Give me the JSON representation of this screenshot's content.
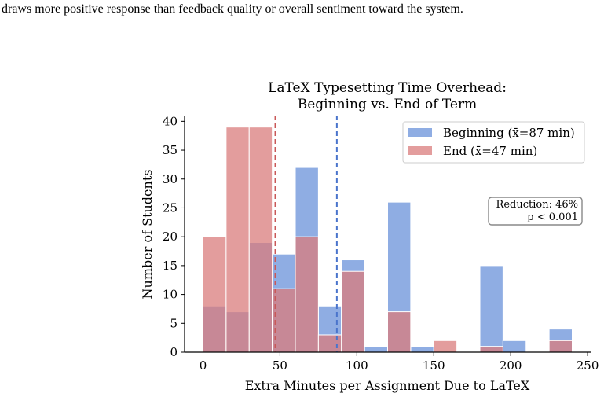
{
  "caption_fragment": "draws more positive response than feedback quality or overall sentiment toward the system.",
  "chart_data": {
    "type": "bar",
    "title_lines": [
      "LaTeX Typesetting Time Overhead:",
      "Beginning vs. End of Term"
    ],
    "xlabel": "Extra Minutes per Assignment Due to LaTeX",
    "ylabel": "Number of Students",
    "xlim": [
      -12,
      252
    ],
    "ylim": [
      0,
      41
    ],
    "x_ticks": [
      0,
      50,
      100,
      150,
      200,
      250
    ],
    "y_ticks": [
      0,
      5,
      10,
      15,
      20,
      25,
      30,
      35,
      40
    ],
    "bin_edges": [
      0,
      15,
      30,
      45,
      60,
      75,
      90,
      105,
      120,
      135,
      150,
      165,
      180,
      195,
      210,
      225,
      240
    ],
    "series": [
      {
        "name": "Beginning (x̄=87 min)",
        "color": "#6a92da",
        "counts": [
          8,
          7,
          19,
          17,
          32,
          8,
          16,
          1,
          26,
          1,
          0,
          0,
          15,
          2,
          0,
          4
        ],
        "mean": 87
      },
      {
        "name": "End (x̄=47 min)",
        "color": "#da7c7c",
        "counts": [
          20,
          39,
          39,
          11,
          20,
          3,
          14,
          0,
          7,
          0,
          2,
          0,
          1,
          0,
          0,
          2
        ],
        "mean": 47
      }
    ],
    "legend_position": "top-right",
    "annotation": [
      "Reduction: 46%",
      "p < 0.001"
    ],
    "grid": false
  }
}
